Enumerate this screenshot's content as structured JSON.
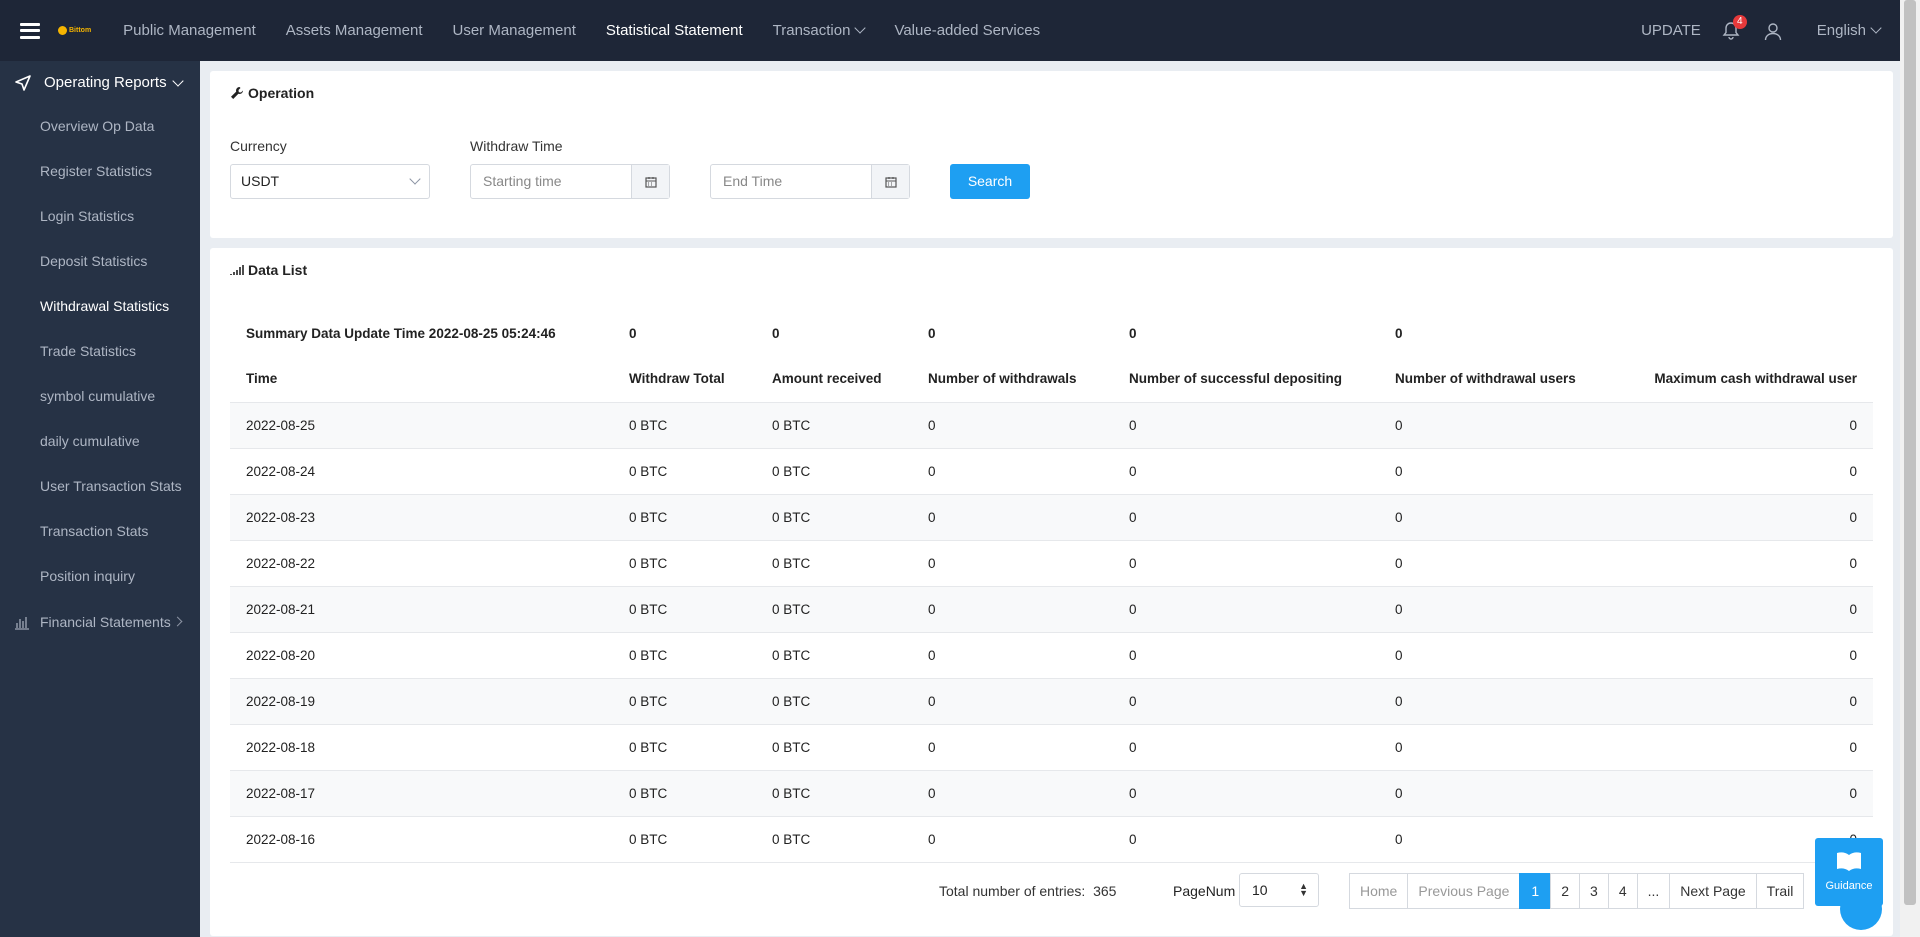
{
  "topbar": {
    "logo_text": "Bittom",
    "nav": [
      "Public Management",
      "Assets Management",
      "User Management",
      "Statistical Statement",
      "Transaction",
      "Value-added Services"
    ],
    "update_label": "UPDATE",
    "notification_count": "4",
    "language": "English"
  },
  "sidebar": {
    "group_label": "Operating Reports",
    "items": [
      "Overview Op Data",
      "Register Statistics",
      "Login Statistics",
      "Deposit Statistics",
      "Withdrawal Statistics",
      "Trade Statistics",
      "symbol cumulative",
      "daily cumulative",
      "User Transaction Stats",
      "Transaction Stats",
      "Position inquiry"
    ],
    "financial_label": "Financial Statements"
  },
  "operation": {
    "title": "Operation",
    "currency_label": "Currency",
    "currency_value": "USDT",
    "withdraw_time_label": "Withdraw Time",
    "start_placeholder": "Starting time",
    "end_placeholder": "End Time",
    "search_label": "Search"
  },
  "data_list": {
    "title": "Data List",
    "summary": {
      "label": "Summary Data Update Time 2022-08-25 05:24:46",
      "values": [
        "0",
        "0",
        "0",
        "0",
        "0"
      ]
    },
    "columns": [
      "Time",
      "Withdraw Total",
      "Amount received",
      "Number of withdrawals",
      "Number of successful depositing",
      "Number of withdrawal users",
      "Maximum cash withdrawal user"
    ],
    "rows": [
      [
        "2022-08-25",
        "0 BTC",
        "0 BTC",
        "0",
        "0",
        "0",
        "0"
      ],
      [
        "2022-08-24",
        "0 BTC",
        "0 BTC",
        "0",
        "0",
        "0",
        "0"
      ],
      [
        "2022-08-23",
        "0 BTC",
        "0 BTC",
        "0",
        "0",
        "0",
        "0"
      ],
      [
        "2022-08-22",
        "0 BTC",
        "0 BTC",
        "0",
        "0",
        "0",
        "0"
      ],
      [
        "2022-08-21",
        "0 BTC",
        "0 BTC",
        "0",
        "0",
        "0",
        "0"
      ],
      [
        "2022-08-20",
        "0 BTC",
        "0 BTC",
        "0",
        "0",
        "0",
        "0"
      ],
      [
        "2022-08-19",
        "0 BTC",
        "0 BTC",
        "0",
        "0",
        "0",
        "0"
      ],
      [
        "2022-08-18",
        "0 BTC",
        "0 BTC",
        "0",
        "0",
        "0",
        "0"
      ],
      [
        "2022-08-17",
        "0 BTC",
        "0 BTC",
        "0",
        "0",
        "0",
        "0"
      ],
      [
        "2022-08-16",
        "0 BTC",
        "0 BTC",
        "0",
        "0",
        "0",
        "0"
      ]
    ]
  },
  "pagination": {
    "total_label": "Total number of entries:",
    "total_value": "365",
    "pagenum_label": "PageNum",
    "pagenum_value": "10",
    "home": "Home",
    "previous": "Previous Page",
    "pages": [
      "1",
      "2",
      "3",
      "4",
      "..."
    ],
    "next": "Next Page",
    "trail": "Trail"
  },
  "guidance_label": "Guidance",
  "colors": {
    "primary": "#1e9ff2",
    "topbar": "#1e2637",
    "sidebar": "#263245",
    "badge": "#e6393b"
  }
}
